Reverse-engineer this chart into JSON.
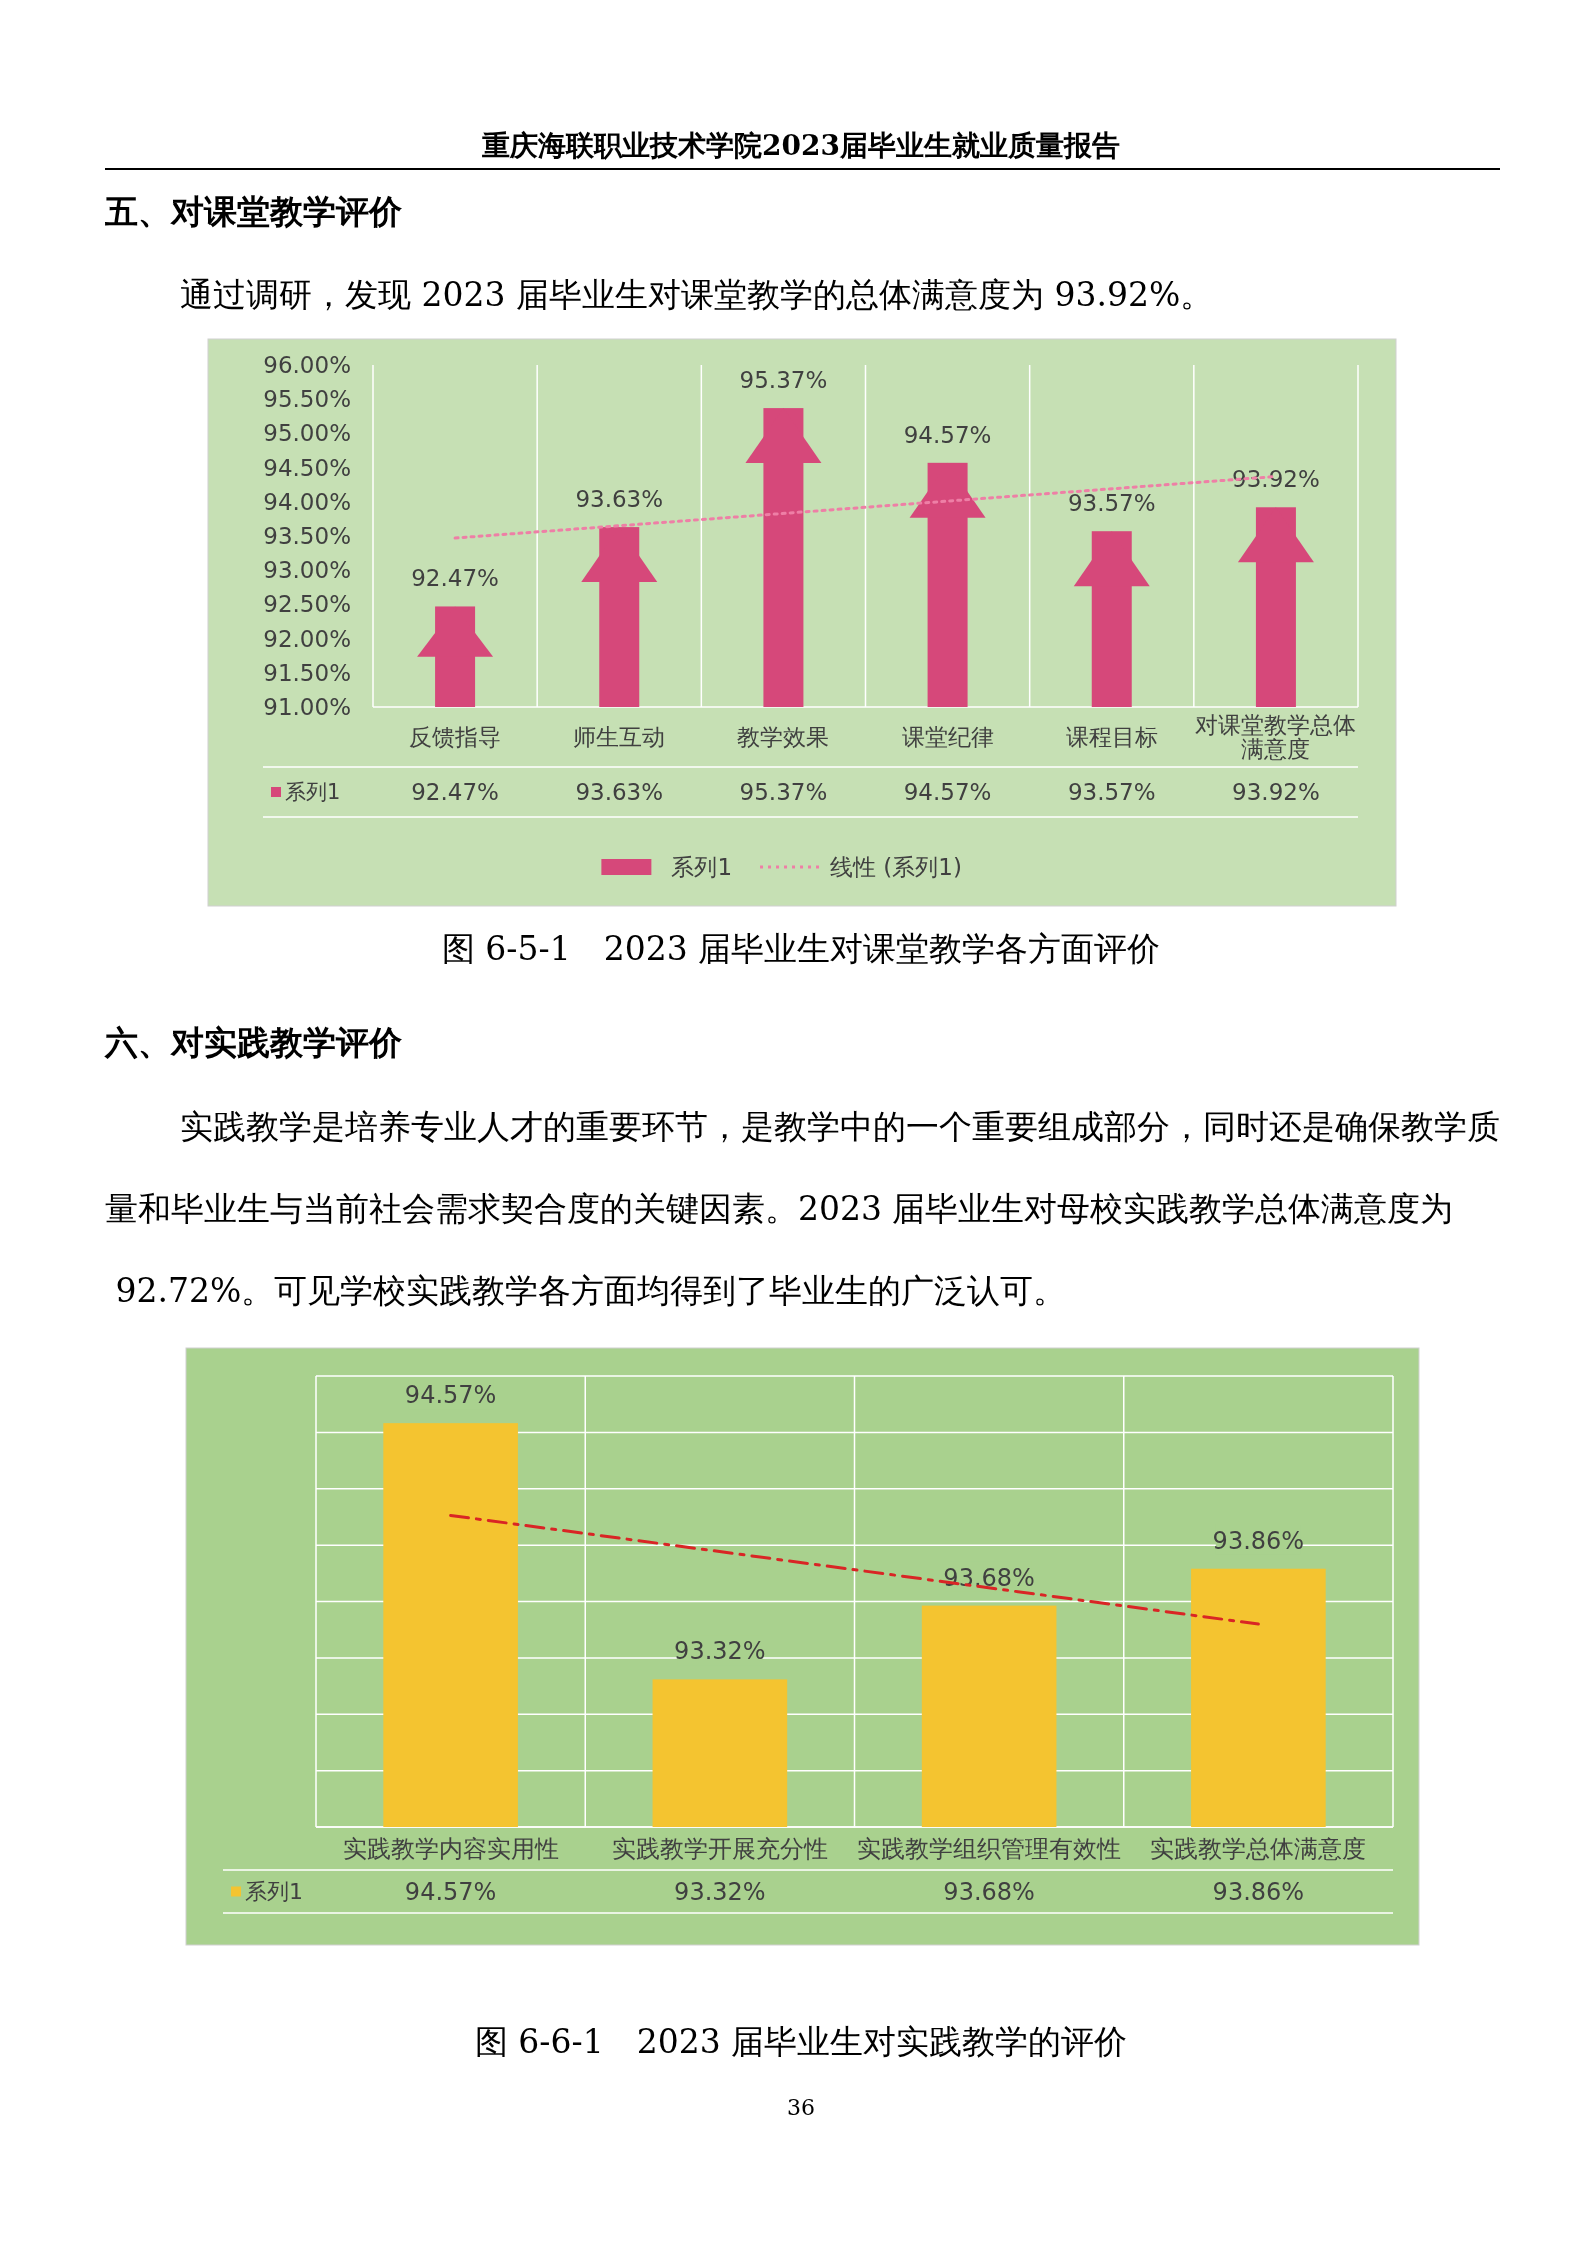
{
  "chart_data": [
    {
      "type": "bar",
      "title": "图 6-5-1　2023 届毕业生对课堂教学各方面评价",
      "annotations": [
        "重庆海联职业技术学院2023届毕业生就业质量报告",
        "五、对课堂教学评价",
        "通过调研，发现 2023 届毕业生对课堂教学的总体满意度为 93.92%。"
      ],
      "categories": [
        "反馈指导",
        "师生互动",
        "教学效果",
        "课堂纪律",
        "课程目标",
        "对课堂教学总体满意度"
      ],
      "series": [
        {
          "name": "系列1",
          "color": "#d6487a",
          "values": [
            92.47,
            93.63,
            95.37,
            94.57,
            93.57,
            93.92
          ],
          "value_labels": [
            "92.47%",
            "93.63%",
            "95.37%",
            "94.57%",
            "93.57%",
            "93.92%"
          ]
        },
        {
          "name": "线性 (系列1)",
          "type": "line",
          "color": "#ee7fa6",
          "line_style": "dotted",
          "x": [
            "反馈指导",
            "对课堂教学总体满意度"
          ],
          "values": [
            93.47,
            94.37
          ]
        }
      ],
      "ylim": [
        91,
        96
      ],
      "yticks": [
        {
          "value": 91,
          "label": "91.00%"
        },
        {
          "value": 91.5,
          "label": "91.50%"
        },
        {
          "value": 92,
          "label": "92.00%"
        },
        {
          "value": 92.5,
          "label": "92.50%"
        },
        {
          "value": 93,
          "label": "93.00%"
        },
        {
          "value": 93.5,
          "label": "93.50%"
        },
        {
          "value": 94,
          "label": "94.00%"
        },
        {
          "value": 94.5,
          "label": "94.50%"
        },
        {
          "value": 95,
          "label": "95.00%"
        },
        {
          "value": 95.5,
          "label": "95.50%"
        },
        {
          "value": 96,
          "label": "96.00%"
        }
      ],
      "grid": "x",
      "legend": "bottom"
    },
    {
      "type": "bar",
      "title": "图 6-6-1　2023 届毕业生对实践教学的评价",
      "annotations": [
        "六、对实践教学评价",
        "实践教学是培养专业人才的重要环节，是教学中的一个重要组成部分，同时还是确保教学质量和毕业生与当前社会需求契合度的关键因素。2023 届毕业生对母校实践教学总体满意度为 92.72%。可见学校实践教学各方面均得到了毕业生的广泛认可。",
        "36"
      ],
      "categories": [
        "实践教学内容实用性",
        "实践教学开展充分性",
        "实践教学组织管理有效性",
        "实践教学总体满意度"
      ],
      "series": [
        {
          "name": "系列1",
          "color": "#f4c430",
          "values": [
            94.57,
            93.32,
            93.68,
            93.86
          ],
          "value_labels": [
            "94.57%",
            "93.32%",
            "93.68%",
            "93.86%"
          ]
        },
        {
          "type": "line",
          "color": "#d92525",
          "line_style": "dashed",
          "x": [
            "实践教学内容实用性",
            "实践教学总体满意度"
          ],
          "values": [
            94.12,
            93.59
          ]
        }
      ],
      "ylim": [
        92.6,
        94.8
      ],
      "yticks": [
        {
          "value": 92.6,
          "label": null
        },
        {
          "value": 92.875,
          "label": null
        },
        {
          "value": 93.15,
          "label": null
        },
        {
          "value": 93.425,
          "label": null
        },
        {
          "value": 93.7,
          "label": null
        },
        {
          "value": 93.975,
          "label": null
        },
        {
          "value": 94.25,
          "label": null
        },
        {
          "value": 94.525,
          "label": null
        },
        {
          "value": 94.8,
          "label": null
        }
      ],
      "tick_labels": "x",
      "grid": true
    }
  ]
}
